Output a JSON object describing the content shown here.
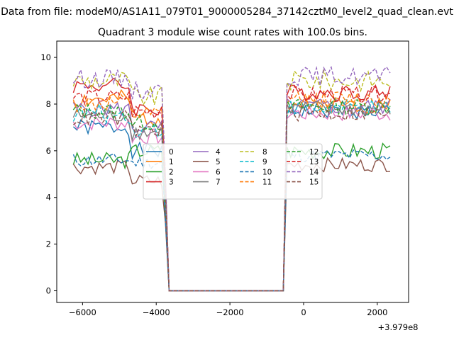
{
  "chart_data": {
    "type": "line",
    "title_line1": "Data from file: modeM0/AS1A11_079T01_9000005284_37142cztM0_level2_quad_clean.evt",
    "title_line2": "Quadrant 3 module wise count rates with 100.0s bins.",
    "xlabel": "",
    "ylabel": "",
    "x_offset_label": "+3.979e8",
    "x_ticks": [
      -6000,
      -4000,
      -2000,
      0,
      2000
    ],
    "x_tick_labels": [
      "−6000",
      "−4000",
      "−2000",
      "0",
      "2000"
    ],
    "y_ticks": [
      0,
      2,
      4,
      6,
      8,
      10
    ],
    "y_tick_labels": [
      "0",
      "2",
      "4",
      "6",
      "8",
      "10"
    ],
    "xlim": [
      -6700,
      2850
    ],
    "ylim": [
      -0.5,
      10.7
    ],
    "grid": false,
    "legend_placement": "center",
    "legend_columns": 4,
    "x_start": -6250,
    "x_step": 100,
    "n_points": 87,
    "gap_start": -3650,
    "gap_end": -550,
    "series": [
      {
        "name": "0",
        "color": "#1f77b4",
        "dash": "solid",
        "pre": 7.0,
        "post": 7.7,
        "pre_tail": 6.0,
        "amp": 0.35,
        "seed": 1
      },
      {
        "name": "1",
        "color": "#ff7f0e",
        "dash": "solid",
        "pre": 8.2,
        "post": 8.0,
        "pre_tail": 7.4,
        "amp": 0.4,
        "seed": 2
      },
      {
        "name": "2",
        "color": "#2ca02c",
        "dash": "solid",
        "pre": 5.6,
        "post": 6.0,
        "pre_tail": 6.0,
        "amp": 0.35,
        "seed": 3
      },
      {
        "name": "3",
        "color": "#d62728",
        "dash": "solid",
        "pre": 8.8,
        "post": 8.5,
        "pre_tail": 7.8,
        "amp": 0.35,
        "seed": 4
      },
      {
        "name": "4",
        "color": "#9467bd",
        "dash": "solid",
        "pre": 7.8,
        "post": 7.9,
        "pre_tail": 7.0,
        "amp": 0.35,
        "seed": 5
      },
      {
        "name": "5",
        "color": "#8c564b",
        "dash": "solid",
        "pre": 5.3,
        "post": 5.4,
        "pre_tail": 4.7,
        "amp": 0.3,
        "seed": 6
      },
      {
        "name": "6",
        "color": "#e377c2",
        "dash": "solid",
        "pre": 7.2,
        "post": 7.6,
        "pre_tail": 6.6,
        "amp": 0.35,
        "seed": 7
      },
      {
        "name": "7",
        "color": "#7f7f7f",
        "dash": "solid",
        "pre": 7.5,
        "post": 7.8,
        "pre_tail": 6.8,
        "amp": 0.35,
        "seed": 8
      },
      {
        "name": "8",
        "color": "#bcbd22",
        "dash": "dashed",
        "pre": 9.0,
        "post": 9.0,
        "pre_tail": 8.3,
        "amp": 0.45,
        "seed": 9
      },
      {
        "name": "9",
        "color": "#17becf",
        "dash": "dashed",
        "pre": 7.6,
        "post": 7.8,
        "pre_tail": 6.9,
        "amp": 0.4,
        "seed": 10
      },
      {
        "name": "10",
        "color": "#1f77b4",
        "dash": "dashed",
        "pre": 5.6,
        "post": 5.8,
        "pre_tail": 5.5,
        "amp": 0.3,
        "seed": 11
      },
      {
        "name": "11",
        "color": "#ff7f0e",
        "dash": "dashed",
        "pre": 8.0,
        "post": 8.2,
        "pre_tail": 7.5,
        "amp": 0.4,
        "seed": 12
      },
      {
        "name": "12",
        "color": "#2ca02c",
        "dash": "dashed",
        "pre": 7.7,
        "post": 7.9,
        "pre_tail": 7.2,
        "amp": 0.35,
        "seed": 13
      },
      {
        "name": "13",
        "color": "#d62728",
        "dash": "dashed",
        "pre": 8.3,
        "post": 8.4,
        "pre_tail": 7.7,
        "amp": 0.35,
        "seed": 14
      },
      {
        "name": "14",
        "color": "#9467bd",
        "dash": "dashed",
        "pre": 9.1,
        "post": 9.2,
        "pre_tail": 8.6,
        "amp": 0.4,
        "seed": 15
      },
      {
        "name": "15",
        "color": "#8c564b",
        "dash": "dashed",
        "pre": 7.4,
        "post": 7.6,
        "pre_tail": 6.9,
        "amp": 0.35,
        "seed": 16
      }
    ]
  }
}
